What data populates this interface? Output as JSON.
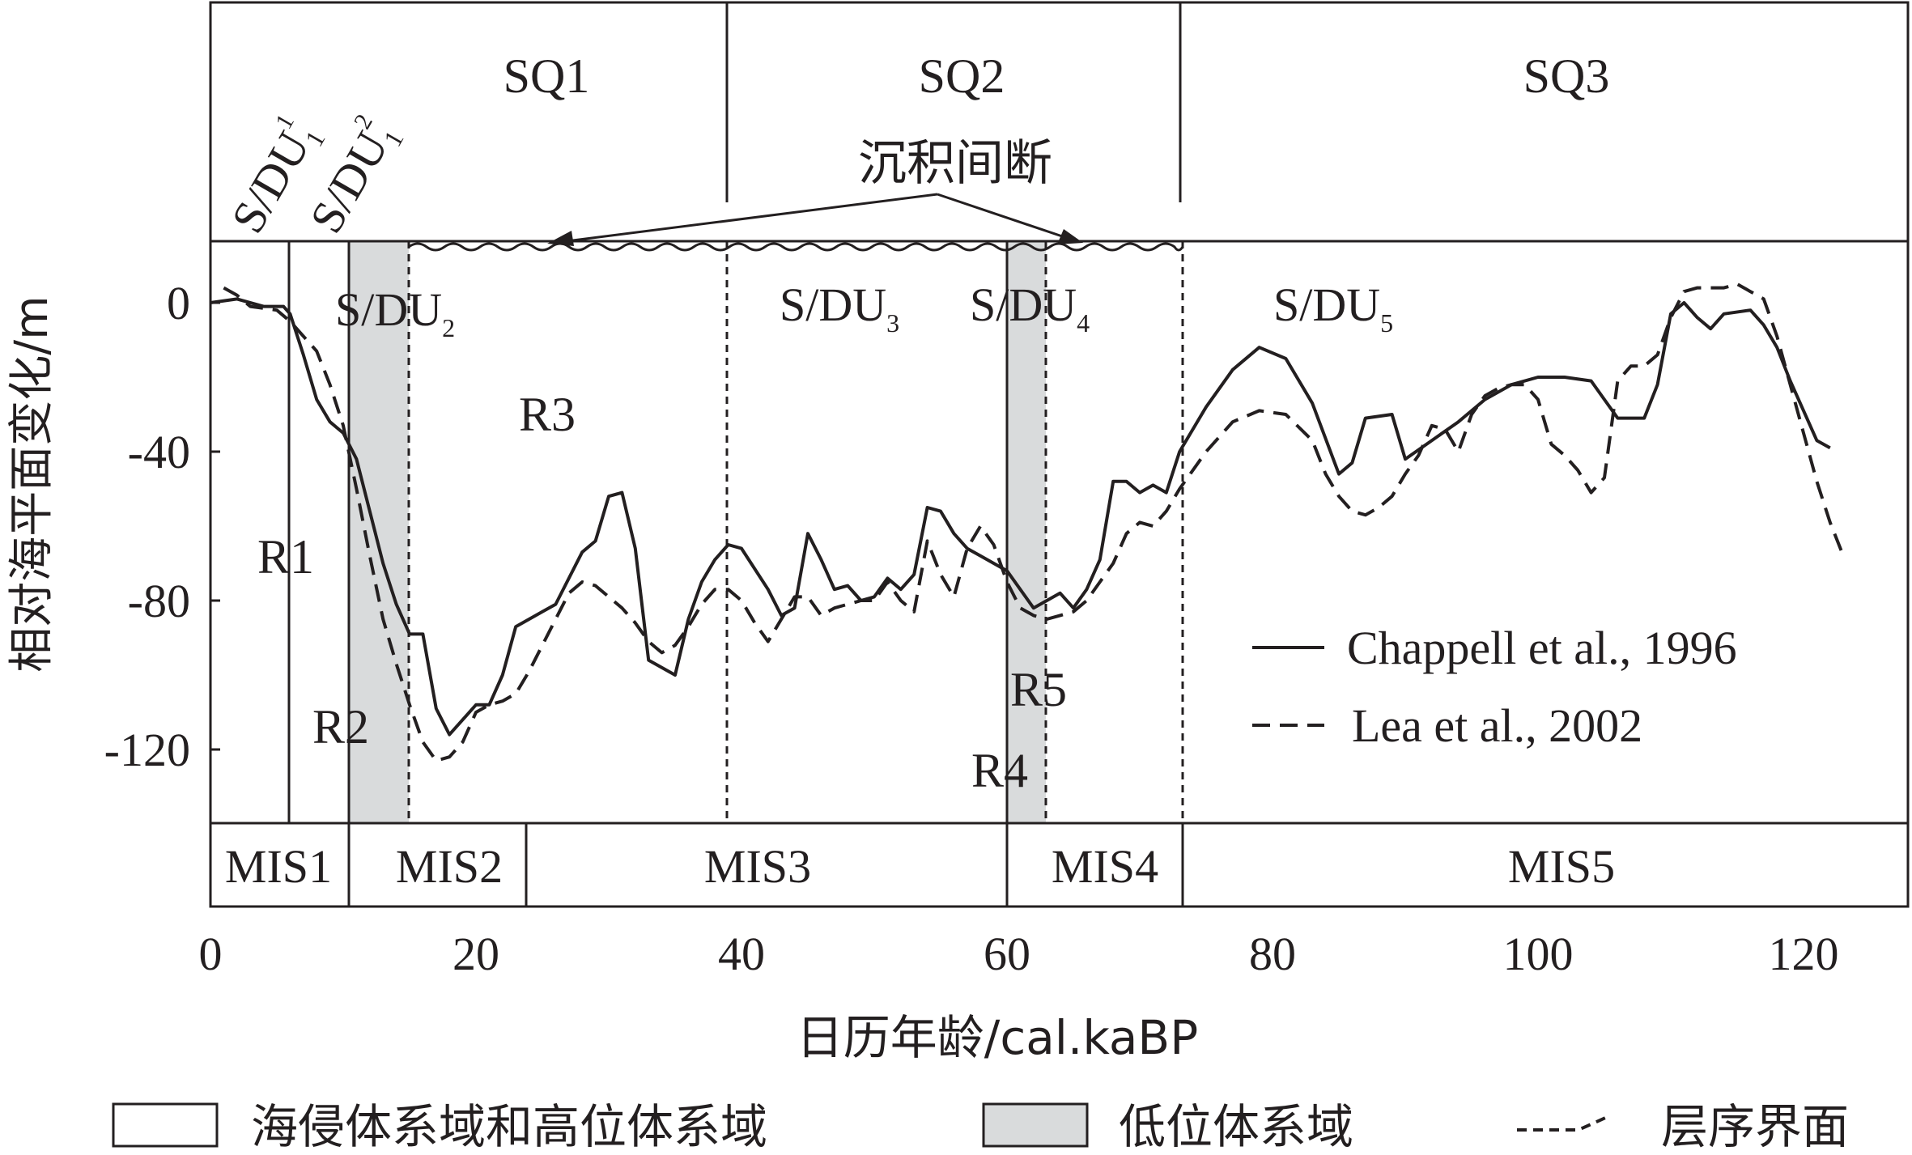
{
  "chart_data": {
    "type": "line",
    "xlabel": "日历年龄/cal.kaBP",
    "ylabel": "相对海平面变化/m",
    "xlim": [
      0,
      128
    ],
    "ylim": [
      -140,
      20
    ],
    "x_ticks": [
      "0",
      "20",
      "40",
      "60",
      "80",
      "100",
      "120"
    ],
    "y_ticks": [
      "0",
      "-40",
      "-80",
      "-120"
    ],
    "sequences": [
      "SQ1",
      "SQ2",
      "SQ3"
    ],
    "su_labels": {
      "du1_1": {
        "main": "S/DU",
        "sub": "1",
        "sup": "1"
      },
      "du1_2": {
        "main": "S/DU",
        "sub": "1",
        "sup": "2"
      },
      "du2": {
        "main": "S/DU",
        "sub": "2"
      },
      "du3": {
        "main": "S/DU",
        "sub": "3"
      },
      "du4": {
        "main": "S/DU",
        "sub": "4"
      },
      "du5": {
        "main": "S/DU",
        "sub": "5"
      }
    },
    "hiatus_label": "沉积间断",
    "mis_stages": [
      "MIS1",
      "MIS2",
      "MIS3",
      "MIS4",
      "MIS5"
    ],
    "regions": [
      "R1",
      "R2",
      "R3",
      "R4",
      "R5"
    ],
    "series": [
      {
        "name": "Chappell et al., 1996",
        "style": "solid",
        "points": [
          [
            0,
            0
          ],
          [
            2,
            1
          ],
          [
            4,
            -1
          ],
          [
            5.5,
            -1
          ],
          [
            6,
            -3
          ],
          [
            7,
            -14
          ],
          [
            8,
            -26
          ],
          [
            9,
            -32
          ],
          [
            10,
            -35
          ],
          [
            11,
            -42
          ],
          [
            12,
            -56
          ],
          [
            13,
            -70
          ],
          [
            14,
            -81
          ],
          [
            15,
            -89
          ],
          [
            16,
            -89
          ],
          [
            17,
            -109
          ],
          [
            18,
            -116
          ],
          [
            19,
            -112
          ],
          [
            20,
            -108
          ],
          [
            21,
            -108
          ],
          [
            22,
            -100
          ],
          [
            23,
            -87
          ],
          [
            25,
            -83
          ],
          [
            26,
            -81
          ],
          [
            27,
            -74
          ],
          [
            28,
            -67
          ],
          [
            29,
            -64
          ],
          [
            30,
            -52
          ],
          [
            31,
            -51
          ],
          [
            32,
            -66
          ],
          [
            33,
            -96
          ],
          [
            35,
            -100
          ],
          [
            36,
            -85
          ],
          [
            37,
            -75
          ],
          [
            38,
            -69
          ],
          [
            39,
            -65
          ],
          [
            40,
            -66
          ],
          [
            42,
            -77
          ],
          [
            43,
            -84
          ],
          [
            44,
            -82
          ],
          [
            45,
            -62
          ],
          [
            46,
            -69
          ],
          [
            47,
            -77
          ],
          [
            48,
            -76
          ],
          [
            49,
            -80
          ],
          [
            50,
            -79
          ],
          [
            51,
            -74
          ],
          [
            52,
            -77
          ],
          [
            53,
            -73
          ],
          [
            54,
            -55
          ],
          [
            55,
            -56
          ],
          [
            56,
            -62
          ],
          [
            57,
            -66
          ],
          [
            58,
            -68
          ],
          [
            60,
            -72
          ],
          [
            62,
            -82
          ],
          [
            64,
            -78
          ],
          [
            65,
            -82
          ],
          [
            66,
            -77
          ],
          [
            67,
            -69
          ],
          [
            68,
            -48
          ],
          [
            69,
            -48
          ],
          [
            70,
            -51
          ],
          [
            71,
            -49
          ],
          [
            72,
            -51
          ],
          [
            73,
            -40
          ],
          [
            75,
            -28
          ],
          [
            77,
            -18
          ],
          [
            79,
            -12
          ],
          [
            81,
            -15
          ],
          [
            83,
            -27
          ],
          [
            85,
            -46
          ],
          [
            86,
            -43
          ],
          [
            87,
            -31
          ],
          [
            89,
            -30
          ],
          [
            90,
            -42
          ],
          [
            92,
            -37
          ],
          [
            94,
            -32
          ],
          [
            96,
            -26
          ],
          [
            98,
            -22
          ],
          [
            100,
            -20
          ],
          [
            102,
            -20
          ],
          [
            104,
            -21
          ],
          [
            105,
            -26
          ],
          [
            106,
            -31
          ],
          [
            108,
            -31
          ],
          [
            109,
            -22
          ],
          [
            110,
            -3
          ],
          [
            111,
            0
          ],
          [
            112,
            -4
          ],
          [
            113,
            -7
          ],
          [
            114,
            -3
          ],
          [
            116,
            -2
          ],
          [
            117,
            -6
          ],
          [
            118,
            -12
          ],
          [
            119,
            -21
          ],
          [
            121,
            -37
          ],
          [
            122,
            -39
          ]
        ]
      },
      {
        "name": "Lea et al., 2002",
        "style": "dashed",
        "points": [
          [
            1,
            4
          ],
          [
            2,
            2
          ],
          [
            3,
            -1
          ],
          [
            5,
            -2
          ],
          [
            6,
            -5
          ],
          [
            7,
            -9
          ],
          [
            8,
            -13
          ],
          [
            9,
            -22
          ],
          [
            10,
            -33
          ],
          [
            11,
            -50
          ],
          [
            12,
            -68
          ],
          [
            13,
            -85
          ],
          [
            14,
            -97
          ],
          [
            15,
            -108
          ],
          [
            16,
            -118
          ],
          [
            17,
            -123
          ],
          [
            18,
            -122
          ],
          [
            19,
            -118
          ],
          [
            20,
            -110
          ],
          [
            21,
            -108
          ],
          [
            22,
            -107
          ],
          [
            23,
            -105
          ],
          [
            24,
            -99
          ],
          [
            25,
            -92
          ],
          [
            26,
            -85
          ],
          [
            27,
            -78
          ],
          [
            28,
            -75
          ],
          [
            29,
            -76
          ],
          [
            30,
            -79
          ],
          [
            31,
            -82
          ],
          [
            32,
            -86
          ],
          [
            33,
            -91
          ],
          [
            34,
            -94
          ],
          [
            35,
            -92
          ],
          [
            36,
            -87
          ],
          [
            37,
            -81
          ],
          [
            38,
            -77
          ],
          [
            39,
            -77
          ],
          [
            40,
            -80
          ],
          [
            41,
            -86
          ],
          [
            42,
            -91
          ],
          [
            43,
            -85
          ],
          [
            44,
            -79
          ],
          [
            45,
            -79
          ],
          [
            46,
            -84
          ],
          [
            47,
            -82
          ],
          [
            48,
            -81
          ],
          [
            49,
            -80
          ],
          [
            50,
            -80
          ],
          [
            51,
            -75
          ],
          [
            52,
            -80
          ],
          [
            53,
            -83
          ],
          [
            54,
            -64
          ],
          [
            55,
            -73
          ],
          [
            56,
            -79
          ],
          [
            57,
            -66
          ],
          [
            58,
            -60
          ],
          [
            59,
            -65
          ],
          [
            60,
            -75
          ],
          [
            61,
            -82
          ],
          [
            62,
            -84
          ],
          [
            63,
            -85
          ],
          [
            64,
            -84
          ],
          [
            65,
            -83
          ],
          [
            66,
            -80
          ],
          [
            67,
            -75
          ],
          [
            68,
            -70
          ],
          [
            69,
            -62
          ],
          [
            70,
            -59
          ],
          [
            71,
            -60
          ],
          [
            72,
            -56
          ],
          [
            73,
            -50
          ],
          [
            75,
            -40
          ],
          [
            77,
            -32
          ],
          [
            79,
            -29
          ],
          [
            81,
            -30
          ],
          [
            83,
            -37
          ],
          [
            84,
            -46
          ],
          [
            85,
            -52
          ],
          [
            86,
            -56
          ],
          [
            87,
            -57
          ],
          [
            88,
            -55
          ],
          [
            89,
            -52
          ],
          [
            90,
            -46
          ],
          [
            91,
            -41
          ],
          [
            92,
            -33
          ],
          [
            93,
            -34
          ],
          [
            94,
            -40
          ],
          [
            95,
            -30
          ],
          [
            96,
            -25
          ],
          [
            97,
            -23
          ],
          [
            98,
            -22
          ],
          [
            99,
            -22
          ],
          [
            100,
            -26
          ],
          [
            101,
            -38
          ],
          [
            102,
            -41
          ],
          [
            103,
            -45
          ],
          [
            104,
            -51
          ],
          [
            105,
            -47
          ],
          [
            106,
            -21
          ],
          [
            107,
            -17
          ],
          [
            108,
            -17
          ],
          [
            109,
            -14
          ],
          [
            110,
            -4
          ],
          [
            111,
            3
          ],
          [
            112,
            4
          ],
          [
            114,
            4
          ],
          [
            115,
            5
          ],
          [
            116,
            3
          ],
          [
            117,
            1
          ],
          [
            118,
            -9
          ],
          [
            119,
            -22
          ],
          [
            120,
            -35
          ],
          [
            121,
            -48
          ],
          [
            122,
            -59
          ],
          [
            123,
            -68
          ]
        ]
      }
    ],
    "legend_bottom": {
      "transgressive_hst": "海侵体系域和高位体系域",
      "lst": "低位体系域",
      "boundary": "层序界面"
    }
  }
}
